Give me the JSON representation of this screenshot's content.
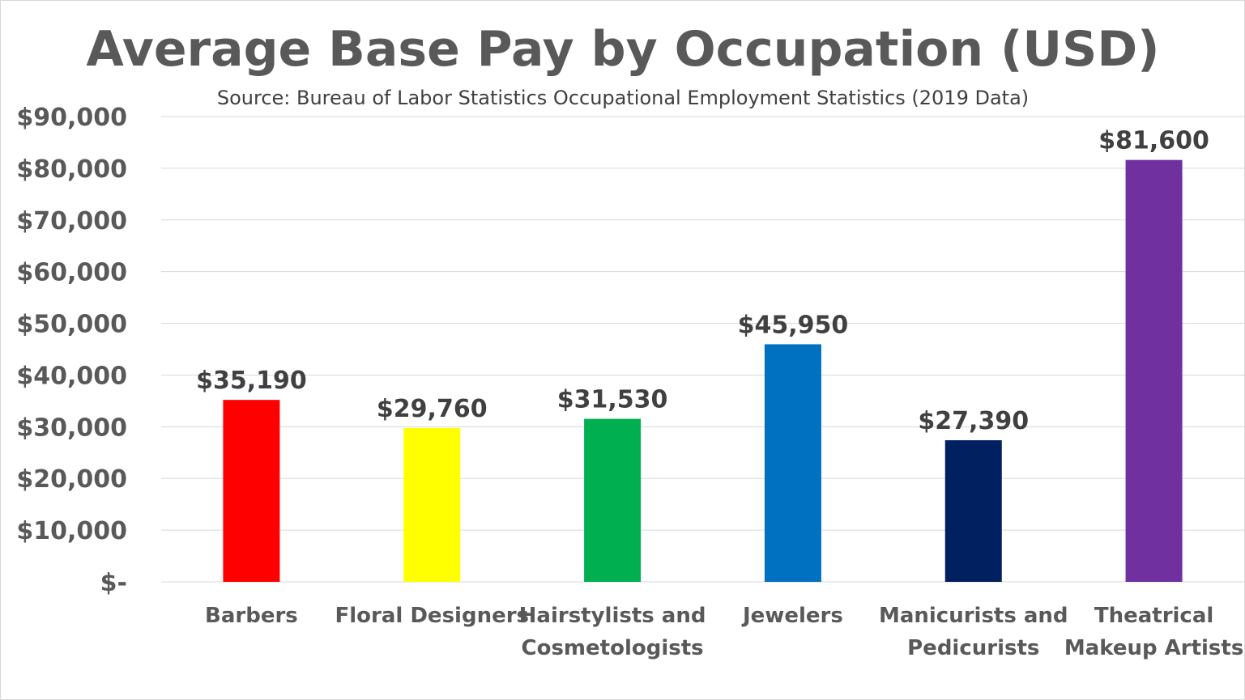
{
  "chart_data": {
    "type": "bar",
    "title": "Average Base Pay by Occupation (USD)",
    "subtitle": "Source: Bureau of Labor Statistics Occupational Employment Statistics (2019 Data)",
    "xlabel": "",
    "ylabel": "",
    "ylim": [
      0,
      90000
    ],
    "yticks": [
      0,
      10000,
      20000,
      30000,
      40000,
      50000,
      60000,
      70000,
      80000,
      90000
    ],
    "ytick_labels": [
      "$-",
      "$10,000",
      "$20,000",
      "$30,000",
      "$40,000",
      "$50,000",
      "$60,000",
      "$70,000",
      "$80,000",
      "$90,000"
    ],
    "grid": true,
    "legend": "none",
    "categories": [
      [
        "Barbers"
      ],
      [
        "Floral Designers"
      ],
      [
        "Hairstylists and",
        "Cosmetologists"
      ],
      [
        "Jewelers"
      ],
      [
        "Manicurists and",
        "Pedicurists"
      ],
      [
        "Theatrical",
        "Makeup Artists"
      ]
    ],
    "values": [
      35190,
      29760,
      31530,
      45950,
      27390,
      81600
    ],
    "value_labels": [
      "$35,190",
      "$29,760",
      "$31,530",
      "$45,950",
      "$27,390",
      "$81,600"
    ],
    "colors": [
      "#ff0000",
      "#ffff00",
      "#00b050",
      "#0070c0",
      "#002060",
      "#7030a0"
    ]
  }
}
